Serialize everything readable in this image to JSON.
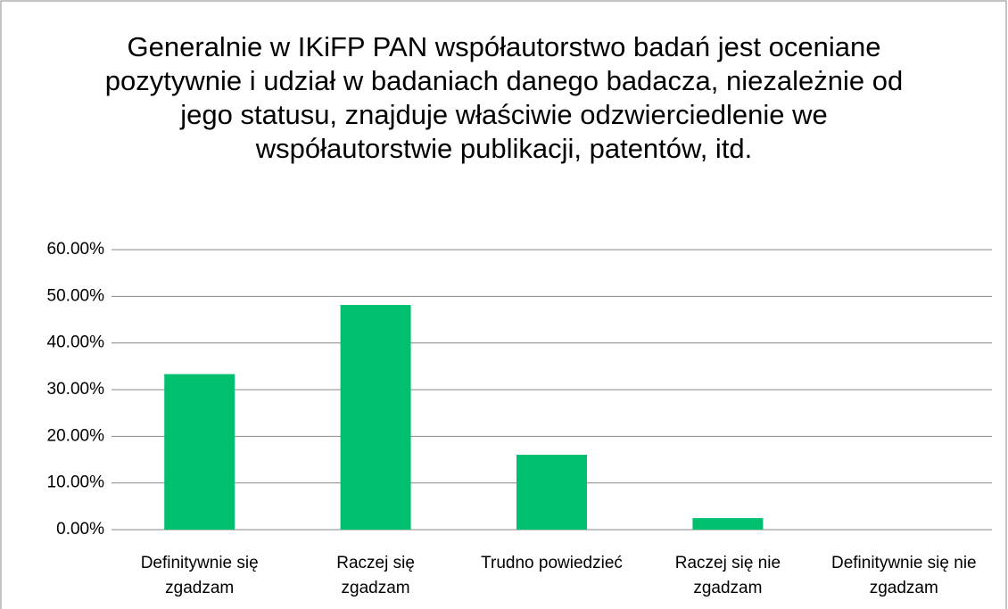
{
  "chart_data": {
    "type": "bar",
    "title": "Generalnie w IKiFP PAN współautorstwo badań jest oceniane pozytywnie i udział w badaniach danego badacza, niezależnie od jego statusu, znajduje właściwie odzwierciedlenie we współautorstwie publikacji, patentów, itd.",
    "categories": [
      "Definitywnie się zgadzam",
      "Raczej się zgadzam",
      "Trudno powiedzieć",
      "Raczej się nie zgadzam",
      "Definitywnie się nie zgadzam"
    ],
    "values": [
      33.33,
      48.15,
      16.05,
      2.47,
      0
    ],
    "color": "#00c070",
    "ylim": [
      0,
      60
    ],
    "yticks": [
      {
        "value": 0,
        "label": "0.00%"
      },
      {
        "value": 10,
        "label": "10.00%"
      },
      {
        "value": 20,
        "label": "20.00%"
      },
      {
        "value": 30,
        "label": "30.00%"
      },
      {
        "value": 40,
        "label": "40.00%"
      },
      {
        "value": 50,
        "label": "50.00%"
      },
      {
        "value": 60,
        "label": "60.00%"
      }
    ],
    "grid": true
  }
}
